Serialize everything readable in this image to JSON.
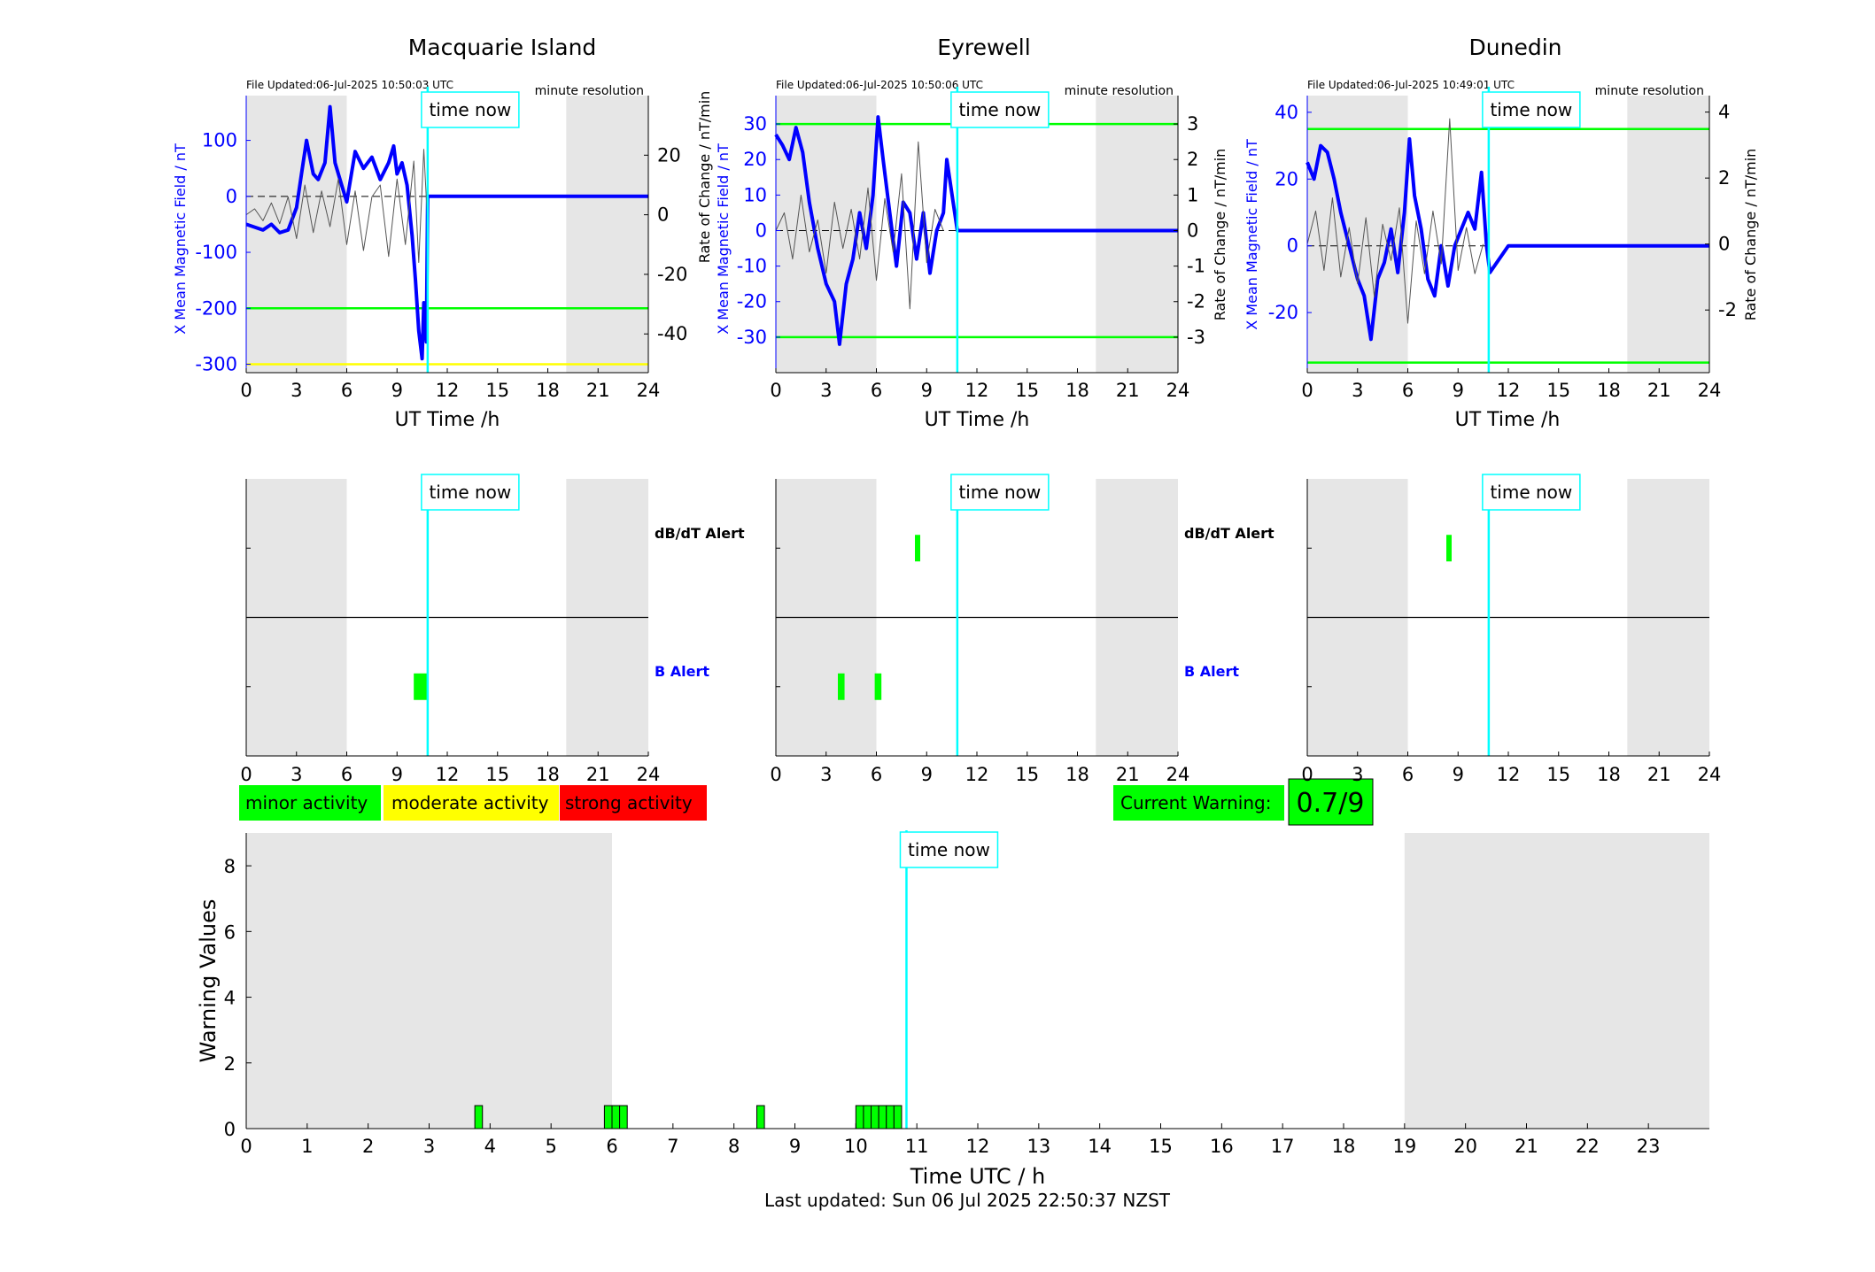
{
  "footer": {
    "last_updated": "Last updated: Sun 06 Jul 2025 22:50:37 NZST"
  },
  "legend": {
    "minor": "minor activity",
    "moderate": "moderate activity",
    "strong": "strong activity",
    "current_label": "Current Warning:",
    "current_value": "0.7/9",
    "colors": {
      "minor": "#00ff00",
      "moderate": "#ffff00",
      "strong": "#ff0000"
    }
  },
  "time_now_label": "time now",
  "stations": [
    {
      "name": "Macquarie Island",
      "file_updated": "File Updated:06-Jul-2025 10:50:03 UTC",
      "resolution": "minute resolution",
      "ylabel_left": "X Mean Magnetic Field / nT",
      "ylabel_right": "Rate of Change / nT/min",
      "xlabel": "UT Time /h",
      "alert_dbdt": "dB/dT Alert",
      "alert_b": "B Alert"
    },
    {
      "name": "Eyrewell",
      "file_updated": "File Updated:06-Jul-2025 10:50:06 UTC",
      "resolution": "minute resolution",
      "ylabel_left": "X Mean Magnetic Field / nT",
      "ylabel_right": "Rate of Change / nT/min",
      "xlabel": "UT Time /h",
      "alert_dbdt": "dB/dT Alert",
      "alert_b": "B Alert"
    },
    {
      "name": "Dunedin",
      "file_updated": "File Updated:06-Jul-2025 10:49:01 UTC",
      "resolution": "minute resolution",
      "ylabel_left": "X Mean Magnetic Field / nT",
      "ylabel_right": "Rate of Change / nT/min",
      "xlabel": "UT Time /h",
      "alert_dbdt": "",
      "alert_b": ""
    }
  ],
  "chart_data": [
    {
      "type": "line",
      "title": "Macquarie Island",
      "xlabel": "UT Time /h",
      "ylabel": "X Mean Magnetic Field / nT",
      "ylabel_right": "Rate of Change / nT/min",
      "xlim": [
        0,
        24
      ],
      "ylim": [
        -315,
        180
      ],
      "ylim_right": [
        -53,
        40
      ],
      "xticks": [
        0,
        3,
        6,
        9,
        12,
        15,
        18,
        21,
        24
      ],
      "yticks": [
        -300,
        -200,
        -100,
        0,
        100
      ],
      "yticks_right": [
        -40,
        -20,
        0,
        20
      ],
      "time_now": 10.83,
      "night_shading": [
        [
          0,
          6
        ],
        [
          19.1,
          24
        ]
      ],
      "thresholds": [
        {
          "y": -200,
          "color": "#00ff00"
        },
        {
          "y": -300,
          "color": "#ffff00"
        }
      ],
      "series": [
        {
          "role": "field",
          "axis": "left",
          "color": "#0000ff",
          "x": [
            0,
            0.5,
            1,
            1.5,
            2,
            2.5,
            3,
            3.3,
            3.6,
            4,
            4.3,
            4.7,
            5,
            5.3,
            5.7,
            6,
            6.5,
            7,
            7.5,
            8,
            8.5,
            8.8,
            9,
            9.3,
            9.6,
            9.9,
            10.1,
            10.3,
            10.5,
            10.6,
            10.75,
            10.83,
            12,
            15,
            18,
            21,
            24
          ],
          "y": [
            -50,
            -55,
            -60,
            -50,
            -65,
            -60,
            -20,
            40,
            100,
            40,
            30,
            60,
            160,
            60,
            20,
            -10,
            80,
            50,
            70,
            30,
            60,
            90,
            40,
            60,
            20,
            -70,
            -150,
            -240,
            -290,
            -190,
            -260,
            0,
            0,
            0,
            0,
            0,
            0
          ]
        },
        {
          "role": "rate",
          "axis": "right",
          "color": "#555555",
          "x": [
            0,
            0.5,
            1,
            1.5,
            2,
            2.5,
            3,
            3.5,
            4,
            4.5,
            5,
            5.5,
            6,
            6.5,
            7,
            7.5,
            8,
            8.5,
            9,
            9.5,
            10,
            10.3,
            10.6,
            10.8
          ],
          "y": [
            0,
            2,
            -2,
            4,
            -3,
            6,
            -8,
            10,
            -6,
            8,
            -4,
            12,
            -10,
            8,
            -12,
            6,
            10,
            -14,
            12,
            -10,
            18,
            -16,
            22,
            0
          ]
        }
      ]
    },
    {
      "type": "line",
      "title": "Eyrewell",
      "xlabel": "UT Time /h",
      "ylabel": "X Mean Magnetic Field / nT",
      "ylabel_right": "Rate of Change / nT/min",
      "xlim": [
        0,
        24
      ],
      "ylim": [
        -40,
        38
      ],
      "ylim_right": [
        -4,
        3.8
      ],
      "xticks": [
        0,
        3,
        6,
        9,
        12,
        15,
        18,
        21,
        24
      ],
      "yticks": [
        -30,
        -20,
        -10,
        0,
        10,
        20,
        30
      ],
      "yticks_right": [
        -3,
        -2,
        -1,
        0,
        1,
        2,
        3
      ],
      "time_now": 10.83,
      "night_shading": [
        [
          0,
          6
        ],
        [
          19.1,
          24
        ]
      ],
      "thresholds": [
        {
          "y": 30,
          "color": "#00ff00"
        },
        {
          "y": -30,
          "color": "#00ff00"
        }
      ],
      "series": [
        {
          "role": "field",
          "axis": "left",
          "color": "#0000ff",
          "x": [
            0,
            0.4,
            0.8,
            1.2,
            1.6,
            2,
            2.5,
            3,
            3.5,
            3.8,
            4.2,
            4.6,
            5,
            5.4,
            5.8,
            6.1,
            6.4,
            6.8,
            7.2,
            7.6,
            8,
            8.4,
            8.8,
            9.2,
            9.6,
            10,
            10.2,
            10.83,
            12,
            15,
            18,
            21,
            24
          ],
          "y": [
            27,
            24,
            20,
            29,
            22,
            8,
            -5,
            -15,
            -20,
            -32,
            -15,
            -8,
            5,
            -5,
            10,
            32,
            20,
            5,
            -10,
            8,
            5,
            -8,
            5,
            -12,
            0,
            5,
            20,
            0,
            0,
            0,
            0,
            0,
            0
          ]
        },
        {
          "role": "rate",
          "axis": "right",
          "color": "#555555",
          "x": [
            0,
            0.5,
            1,
            1.5,
            2,
            2.5,
            3,
            3.5,
            4,
            4.5,
            5,
            5.5,
            6,
            6.5,
            7,
            7.5,
            8,
            8.5,
            9,
            9.5,
            10
          ],
          "y": [
            0,
            0.5,
            -0.8,
            1.0,
            -0.6,
            0.3,
            -1.2,
            0.8,
            -0.5,
            0.6,
            -0.8,
            1.2,
            -1.4,
            0.9,
            -0.6,
            1.6,
            -2.2,
            2.5,
            -0.9,
            0.6,
            0
          ]
        }
      ]
    },
    {
      "type": "line",
      "title": "Dunedin",
      "xlabel": "UT Time /h",
      "ylabel": "X Mean Magnetic Field / nT",
      "ylabel_right": "Rate of Change / nT/min",
      "xlim": [
        0,
        24
      ],
      "ylim": [
        -38,
        45
      ],
      "ylim_right": [
        -3.9,
        4.5
      ],
      "xticks": [
        0,
        3,
        6,
        9,
        12,
        15,
        18,
        21,
        24
      ],
      "yticks": [
        -20,
        0,
        20,
        40
      ],
      "yticks_right": [
        -2,
        0,
        2,
        4
      ],
      "time_now": 10.83,
      "night_shading": [
        [
          0,
          6
        ],
        [
          19.1,
          24
        ]
      ],
      "thresholds": [
        {
          "y": 35,
          "color": "#00ff00"
        },
        {
          "y": -35,
          "color": "#00ff00"
        }
      ],
      "series": [
        {
          "role": "field",
          "axis": "left",
          "color": "#0000ff",
          "x": [
            0,
            0.4,
            0.8,
            1.2,
            1.6,
            2,
            2.5,
            3,
            3.4,
            3.8,
            4.2,
            4.6,
            5,
            5.4,
            5.8,
            6.1,
            6.4,
            6.8,
            7.2,
            7.6,
            8,
            8.4,
            8.8,
            9.2,
            9.6,
            10,
            10.4,
            10.7,
            10.9,
            12,
            15,
            18,
            21,
            24
          ],
          "y": [
            25,
            20,
            30,
            28,
            20,
            10,
            0,
            -10,
            -15,
            -28,
            -10,
            -5,
            5,
            -8,
            10,
            32,
            15,
            5,
            -10,
            -15,
            0,
            -12,
            0,
            5,
            10,
            5,
            22,
            0,
            -8,
            0,
            0,
            0,
            0,
            0
          ]
        },
        {
          "role": "rate",
          "axis": "right",
          "color": "#555555",
          "x": [
            0,
            0.5,
            1,
            1.5,
            2,
            2.5,
            3,
            3.5,
            4,
            4.5,
            5,
            5.5,
            6,
            6.5,
            7,
            7.5,
            8,
            8.5,
            9,
            9.5,
            10,
            10.5
          ],
          "y": [
            0,
            1.0,
            -0.8,
            1.4,
            -1.0,
            0.5,
            -1.2,
            0.8,
            -1.6,
            0.6,
            -0.5,
            1.1,
            -2.4,
            0.7,
            -0.9,
            1.0,
            -0.6,
            3.8,
            -0.8,
            0.5,
            -0.9,
            0
          ]
        }
      ]
    },
    {
      "type": "alerts",
      "station": "Macquarie Island",
      "xlim": [
        0,
        24
      ],
      "xticks": [
        0,
        3,
        6,
        9,
        12,
        15,
        18,
        21,
        24
      ],
      "time_now": 10.83,
      "night_shading": [
        [
          0,
          6
        ],
        [
          19.1,
          24
        ]
      ],
      "dbdt_alerts": [],
      "b_alerts": [
        [
          10,
          10.8
        ]
      ]
    },
    {
      "type": "alerts",
      "station": "Eyrewell",
      "xlim": [
        0,
        24
      ],
      "xticks": [
        0,
        3,
        6,
        9,
        12,
        15,
        18,
        21,
        24
      ],
      "time_now": 10.83,
      "night_shading": [
        [
          0,
          6
        ],
        [
          19.1,
          24
        ]
      ],
      "dbdt_alerts": [
        [
          8.3,
          8.6
        ]
      ],
      "b_alerts": [
        [
          3.7,
          4.1
        ],
        [
          5.9,
          6.3
        ]
      ]
    },
    {
      "type": "alerts",
      "station": "Dunedin",
      "xlim": [
        0,
        24
      ],
      "xticks": [
        0,
        3,
        6,
        9,
        12,
        15,
        18,
        21,
        24
      ],
      "time_now": 10.83,
      "night_shading": [
        [
          0,
          6
        ],
        [
          19.1,
          24
        ]
      ],
      "dbdt_alerts": [
        [
          8.3,
          8.6
        ]
      ],
      "b_alerts": []
    },
    {
      "type": "bar",
      "title": "",
      "xlabel": "Time UTC / h",
      "ylabel": "Warning Values",
      "xlim": [
        0,
        24
      ],
      "ylim": [
        0,
        9
      ],
      "xticks": [
        0,
        1,
        2,
        3,
        4,
        5,
        6,
        7,
        8,
        9,
        10,
        11,
        12,
        13,
        14,
        15,
        16,
        17,
        18,
        19,
        20,
        21,
        22,
        23
      ],
      "yticks": [
        0,
        2,
        4,
        6,
        8
      ],
      "time_now": 10.83,
      "night_shading": [
        [
          0,
          6
        ],
        [
          19,
          24
        ]
      ],
      "bar_width": 0.125,
      "bars": [
        {
          "x": 3.75,
          "value": 0.7
        },
        {
          "x": 5.875,
          "value": 0.7
        },
        {
          "x": 6.0,
          "value": 0.7
        },
        {
          "x": 6.125,
          "value": 0.7
        },
        {
          "x": 8.375,
          "value": 0.7
        },
        {
          "x": 10.0,
          "value": 0.7
        },
        {
          "x": 10.125,
          "value": 0.7
        },
        {
          "x": 10.25,
          "value": 0.7
        },
        {
          "x": 10.375,
          "value": 0.7
        },
        {
          "x": 10.5,
          "value": 0.7
        },
        {
          "x": 10.625,
          "value": 0.7
        }
      ]
    }
  ]
}
